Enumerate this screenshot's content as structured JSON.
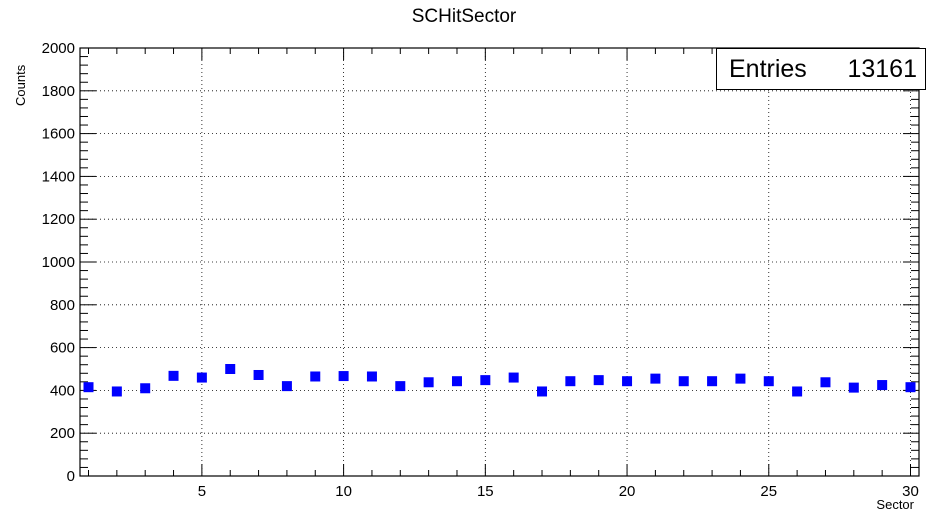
{
  "chart_data": {
    "type": "scatter",
    "title": "SCHitSector",
    "xlabel": "Sector",
    "ylabel": "Counts",
    "xlim": [
      0.7,
      30.3
    ],
    "ylim": [
      0,
      2000
    ],
    "x_ticks": [
      5,
      10,
      15,
      20,
      25,
      30
    ],
    "y_ticks": [
      0,
      200,
      400,
      600,
      800,
      1000,
      1200,
      1400,
      1600,
      1800,
      2000
    ],
    "grid": true,
    "marker": "square",
    "marker_color": "#0000ff",
    "x": [
      1,
      2,
      3,
      4,
      5,
      6,
      7,
      8,
      9,
      10,
      11,
      12,
      13,
      14,
      15,
      16,
      17,
      18,
      19,
      20,
      21,
      22,
      23,
      24,
      25,
      26,
      27,
      28,
      29,
      30
    ],
    "values": [
      415,
      395,
      410,
      468,
      460,
      500,
      472,
      420,
      465,
      467,
      465,
      420,
      438,
      443,
      448,
      460,
      395,
      443,
      448,
      443,
      455,
      443,
      443,
      455,
      443,
      395,
      438,
      413,
      425,
      415
    ],
    "stats_box": {
      "label": "Entries",
      "value": "13161"
    }
  }
}
